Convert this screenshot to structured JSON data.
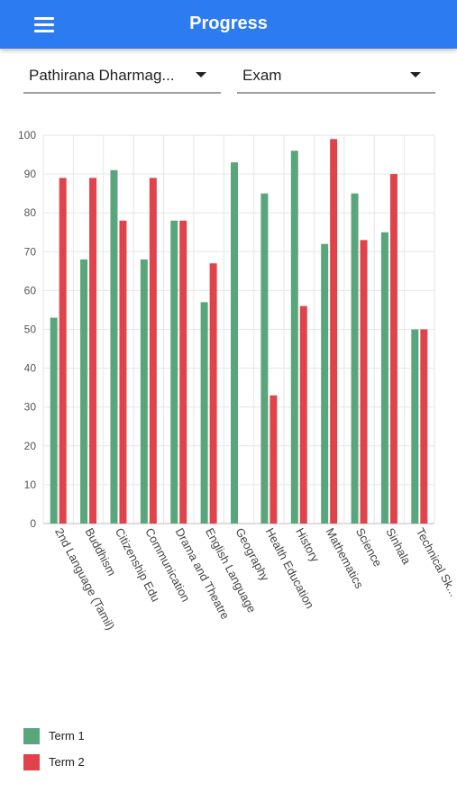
{
  "header": {
    "title": "Progress",
    "menu_icon": "hamburger-menu-icon"
  },
  "filters": {
    "student_value": "Pathirana Dharmag...",
    "exam_value": "Exam"
  },
  "colors": {
    "app_bar": "#2d7bf0",
    "term1": "#5aa67c",
    "term2": "#e0434a"
  },
  "chart_data": {
    "type": "bar",
    "categories": [
      "2nd Language (Tamil)",
      "Buddhism",
      "Citizenship Edu",
      "Communication",
      "Drama and Theatre",
      "English Language",
      "Geography",
      "Health Education",
      "History",
      "Mathematics",
      "Science",
      "Sinhala",
      "Technical Sk..."
    ],
    "series": [
      {
        "name": "Term 1",
        "color": "#5aa67c",
        "values": [
          53,
          68,
          91,
          68,
          78,
          57,
          93,
          85,
          96,
          72,
          85,
          75,
          50
        ]
      },
      {
        "name": "Term 2",
        "color": "#e0434a",
        "values": [
          89,
          89,
          78,
          89,
          78,
          67,
          null,
          33,
          56,
          99,
          73,
          90,
          50
        ]
      }
    ],
    "ylim": [
      0,
      100
    ],
    "yticks": [
      0,
      10,
      20,
      30,
      40,
      50,
      60,
      70,
      80,
      90,
      100
    ],
    "grid": true,
    "legend": "bottom-left"
  }
}
